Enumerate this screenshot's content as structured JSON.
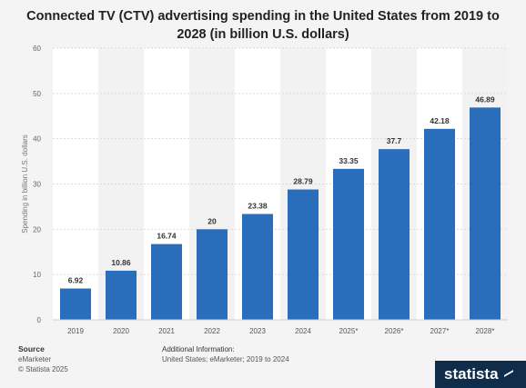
{
  "title": {
    "line1": "Connected TV (CTV) advertising spending in the United States from 2019 to",
    "line2": "2028 (in billion U.S. dollars)"
  },
  "chart_data": {
    "type": "bar",
    "categories": [
      "2019",
      "2020",
      "2021",
      "2022",
      "2023",
      "2024",
      "2025*",
      "2026*",
      "2027*",
      "2028*"
    ],
    "values": [
      6.92,
      10.86,
      16.74,
      20,
      23.38,
      28.79,
      33.35,
      37.7,
      42.18,
      46.89
    ],
    "value_labels": [
      "6.92",
      "10.86",
      "16.74",
      "20",
      "23.38",
      "28.79",
      "33.35",
      "37.7",
      "42.18",
      "46.89"
    ],
    "ylabel": "Spending in billion U.S. dollars",
    "ylim": [
      0,
      60
    ],
    "yticks": [
      0,
      10,
      20,
      30,
      40,
      50,
      60
    ],
    "bar_color": "#2a6ebb",
    "grid": true
  },
  "footer": {
    "source_label": "Source",
    "source_lines": [
      "eMarketer",
      "© Statista 2025"
    ],
    "additional_label": "Additional Information:",
    "additional_text": "United States; eMarketer; 2019 to 2024"
  },
  "logo": {
    "text": "statista"
  }
}
